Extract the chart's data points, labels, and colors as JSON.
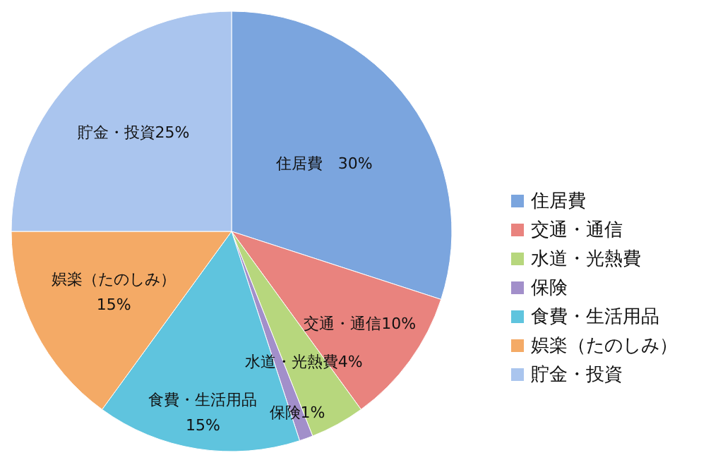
{
  "chart_data": {
    "type": "pie",
    "categories": [
      "住居費",
      "交通・通信",
      "水道・光熱費",
      "保険",
      "食費・生活用品",
      "娯楽（たのしみ）",
      "貯金・投資"
    ],
    "values": [
      30,
      10,
      4,
      1,
      15,
      15,
      25
    ],
    "colors": [
      "#7ba5de",
      "#e9837e",
      "#b7d77d",
      "#a28fca",
      "#5fc4de",
      "#f4aa66",
      "#aac5ee"
    ],
    "value_labels": [
      "住居費　30%",
      "交通・通信10%",
      "水道・光熱費4%",
      "保険1%",
      "食費・生活用品\n15%",
      "娯楽（たのしみ）\n15%",
      "貯金・投資25%"
    ],
    "legend": "right"
  }
}
